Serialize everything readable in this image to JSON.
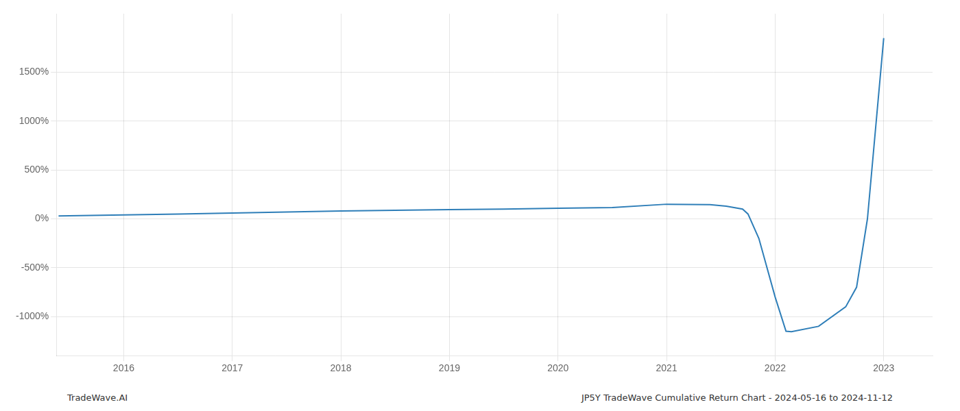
{
  "chart_data": {
    "type": "line",
    "x": [
      2015.4,
      2016.0,
      2016.5,
      2017.0,
      2017.5,
      2018.0,
      2018.5,
      2019.0,
      2019.5,
      2020.0,
      2020.5,
      2021.0,
      2021.4,
      2021.55,
      2021.7,
      2021.75,
      2021.85,
      2022.0,
      2022.1,
      2022.15,
      2022.4,
      2022.65,
      2022.75,
      2022.85,
      2023.0
    ],
    "values": [
      30,
      40,
      50,
      60,
      70,
      80,
      88,
      95,
      100,
      108,
      115,
      150,
      145,
      130,
      100,
      50,
      -200,
      -800,
      -1150,
      -1155,
      -1100,
      -900,
      -700,
      0,
      1850
    ],
    "color": "#2e7eb8",
    "xlim": [
      2015.38,
      2023.45
    ],
    "xticks": [
      2016,
      2017,
      2018,
      2019,
      2020,
      2021,
      2022,
      2023
    ],
    "ylim": [
      -1400,
      2100
    ],
    "yticks": [
      {
        "value": -1000,
        "label": "-1000%"
      },
      {
        "value": -500,
        "label": "-500%"
      },
      {
        "value": 0,
        "label": "0%"
      },
      {
        "value": 500,
        "label": "500%"
      },
      {
        "value": 1000,
        "label": "1000%"
      },
      {
        "value": 1500,
        "label": "1500%"
      }
    ],
    "grid": true,
    "annotations": [
      "TradeWave.AI",
      "JP5Y TradeWave Cumulative Return Chart - 2024-05-16 to 2024-11-12"
    ]
  }
}
